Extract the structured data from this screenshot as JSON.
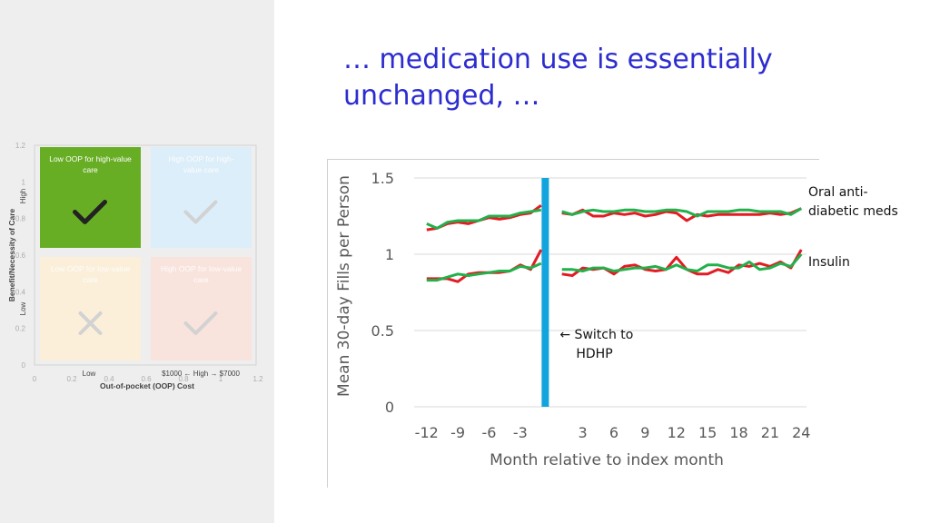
{
  "slide": {
    "title_line1": "… medication use is essentially",
    "title_line2": "unchanged, …"
  },
  "colors": {
    "title": "#2c2cd0",
    "series_red": "#e31b23",
    "series_green": "#22b04b",
    "switch_line": "#12a4dc",
    "quad_top_left": "#5da914",
    "quad_top_right": "#dbeefb",
    "quad_bottom_left": "#fdf0d8",
    "quad_bottom_right": "#fbe3dc"
  },
  "chart_data": [
    {
      "type": "line",
      "ylabel": "Mean 30-day Fills per Person",
      "xlabel": "Month relative to index month",
      "ylim": [
        0,
        1.5
      ],
      "yticks": [
        "0",
        "0.5",
        "1",
        "1.5"
      ],
      "xlim": [
        -13.2,
        24.5
      ],
      "xticks": [
        "-12",
        "-9",
        "-6",
        "-3",
        "3",
        "6",
        "9",
        "12",
        "15",
        "18",
        "21",
        "24"
      ],
      "grid": "horizontal",
      "switch": {
        "x": -0.6,
        "label_line1": "Switch to",
        "label_line2": "HDHP"
      },
      "groups": [
        {
          "label_line1": "Oral anti-",
          "label_line2": "diabetic meds",
          "red_pre": [
            [
              -12,
              1.16
            ],
            [
              -11,
              1.17
            ],
            [
              -10,
              1.2
            ],
            [
              -9,
              1.21
            ],
            [
              -8,
              1.2
            ],
            [
              -7,
              1.22
            ],
            [
              -6,
              1.24
            ],
            [
              -5,
              1.23
            ],
            [
              -4,
              1.24
            ],
            [
              -3,
              1.26
            ],
            [
              -2,
              1.27
            ],
            [
              -1,
              1.32
            ]
          ],
          "green_pre": [
            [
              -12,
              1.2
            ],
            [
              -11,
              1.17
            ],
            [
              -10,
              1.21
            ],
            [
              -9,
              1.22
            ],
            [
              -8,
              1.22
            ],
            [
              -7,
              1.22
            ],
            [
              -6,
              1.25
            ],
            [
              -5,
              1.25
            ],
            [
              -4,
              1.25
            ],
            [
              -3,
              1.27
            ],
            [
              -2,
              1.28
            ],
            [
              -1,
              1.29
            ]
          ],
          "red_post": [
            [
              1,
              1.27
            ],
            [
              2,
              1.26
            ],
            [
              3,
              1.29
            ],
            [
              4,
              1.25
            ],
            [
              5,
              1.25
            ],
            [
              6,
              1.27
            ],
            [
              7,
              1.26
            ],
            [
              8,
              1.27
            ],
            [
              9,
              1.25
            ],
            [
              10,
              1.26
            ],
            [
              11,
              1.28
            ],
            [
              12,
              1.27
            ],
            [
              13,
              1.22
            ],
            [
              14,
              1.26
            ],
            [
              15,
              1.25
            ],
            [
              16,
              1.26
            ],
            [
              17,
              1.26
            ],
            [
              18,
              1.26
            ],
            [
              19,
              1.26
            ],
            [
              20,
              1.26
            ],
            [
              21,
              1.27
            ],
            [
              22,
              1.26
            ],
            [
              23,
              1.27
            ],
            [
              24,
              1.3
            ]
          ],
          "green_post": [
            [
              1,
              1.28
            ],
            [
              2,
              1.26
            ],
            [
              3,
              1.28
            ],
            [
              4,
              1.29
            ],
            [
              5,
              1.28
            ],
            [
              6,
              1.28
            ],
            [
              7,
              1.29
            ],
            [
              8,
              1.29
            ],
            [
              9,
              1.28
            ],
            [
              10,
              1.28
            ],
            [
              11,
              1.29
            ],
            [
              12,
              1.29
            ],
            [
              13,
              1.28
            ],
            [
              14,
              1.25
            ],
            [
              15,
              1.28
            ],
            [
              16,
              1.28
            ],
            [
              17,
              1.28
            ],
            [
              18,
              1.29
            ],
            [
              19,
              1.29
            ],
            [
              20,
              1.28
            ],
            [
              21,
              1.28
            ],
            [
              22,
              1.28
            ],
            [
              23,
              1.26
            ],
            [
              24,
              1.3
            ]
          ]
        },
        {
          "label_line1": "Insulin",
          "label_line2": "",
          "red_pre": [
            [
              -12,
              0.84
            ],
            [
              -11,
              0.84
            ],
            [
              -10,
              0.84
            ],
            [
              -9,
              0.82
            ],
            [
              -8,
              0.87
            ],
            [
              -7,
              0.88
            ],
            [
              -6,
              0.88
            ],
            [
              -5,
              0.88
            ],
            [
              -4,
              0.89
            ],
            [
              -3,
              0.93
            ],
            [
              -2,
              0.9
            ],
            [
              -1,
              1.03
            ]
          ],
          "green_pre": [
            [
              -12,
              0.83
            ],
            [
              -11,
              0.83
            ],
            [
              -10,
              0.85
            ],
            [
              -9,
              0.87
            ],
            [
              -8,
              0.86
            ],
            [
              -7,
              0.87
            ],
            [
              -6,
              0.88
            ],
            [
              -5,
              0.89
            ],
            [
              -4,
              0.89
            ],
            [
              -3,
              0.92
            ],
            [
              -2,
              0.91
            ],
            [
              -1,
              0.94
            ]
          ],
          "red_post": [
            [
              1,
              0.87
            ],
            [
              2,
              0.86
            ],
            [
              3,
              0.91
            ],
            [
              4,
              0.9
            ],
            [
              5,
              0.91
            ],
            [
              6,
              0.87
            ],
            [
              7,
              0.92
            ],
            [
              8,
              0.93
            ],
            [
              9,
              0.9
            ],
            [
              10,
              0.89
            ],
            [
              11,
              0.9
            ],
            [
              12,
              0.98
            ],
            [
              13,
              0.9
            ],
            [
              14,
              0.87
            ],
            [
              15,
              0.87
            ],
            [
              16,
              0.9
            ],
            [
              17,
              0.88
            ],
            [
              18,
              0.93
            ],
            [
              19,
              0.92
            ],
            [
              20,
              0.94
            ],
            [
              21,
              0.92
            ],
            [
              22,
              0.95
            ],
            [
              23,
              0.91
            ],
            [
              24,
              1.03
            ]
          ],
          "green_post": [
            [
              1,
              0.9
            ],
            [
              2,
              0.9
            ],
            [
              3,
              0.89
            ],
            [
              4,
              0.91
            ],
            [
              5,
              0.91
            ],
            [
              6,
              0.89
            ],
            [
              7,
              0.9
            ],
            [
              8,
              0.91
            ],
            [
              9,
              0.91
            ],
            [
              10,
              0.92
            ],
            [
              11,
              0.9
            ],
            [
              12,
              0.93
            ],
            [
              13,
              0.9
            ],
            [
              14,
              0.89
            ],
            [
              15,
              0.93
            ],
            [
              16,
              0.93
            ],
            [
              17,
              0.91
            ],
            [
              18,
              0.91
            ],
            [
              19,
              0.95
            ],
            [
              20,
              0.9
            ],
            [
              21,
              0.91
            ],
            [
              22,
              0.94
            ],
            [
              23,
              0.92
            ],
            [
              24,
              1.0
            ]
          ]
        }
      ]
    },
    {
      "type": "scatter",
      "xlabel": "Out-of-pocket (OOP) Cost",
      "ylabel": "Benefit/Necessity of Care",
      "xlim": [
        0,
        1.2
      ],
      "ylim": [
        0,
        1.2
      ],
      "xticks": [
        "0",
        "0.2",
        "0.4",
        "0.6",
        "0.8",
        "1",
        "1.2"
      ],
      "yticks": [
        "0",
        "0.2",
        "0.4",
        "0.6",
        "0.8",
        "1",
        "1.2"
      ],
      "x_low": "Low",
      "x_high_text": "$1000 ← High → $7000",
      "y_low": "Low",
      "y_high": "High",
      "quadrants": [
        {
          "pos": "top-left",
          "label_line1": "Low OOP for high-value",
          "label_line2": "care",
          "mark": "check"
        },
        {
          "pos": "top-right",
          "label_line1": "High OOP for high-",
          "label_line2": "value care",
          "mark": "check"
        },
        {
          "pos": "bottom-left",
          "label_line1": "Low OOP for low-value",
          "label_line2": "care",
          "mark": "cross"
        },
        {
          "pos": "bottom-right",
          "label_line1": "High OOP for low-value",
          "label_line2": "care",
          "mark": "check"
        }
      ]
    }
  ]
}
